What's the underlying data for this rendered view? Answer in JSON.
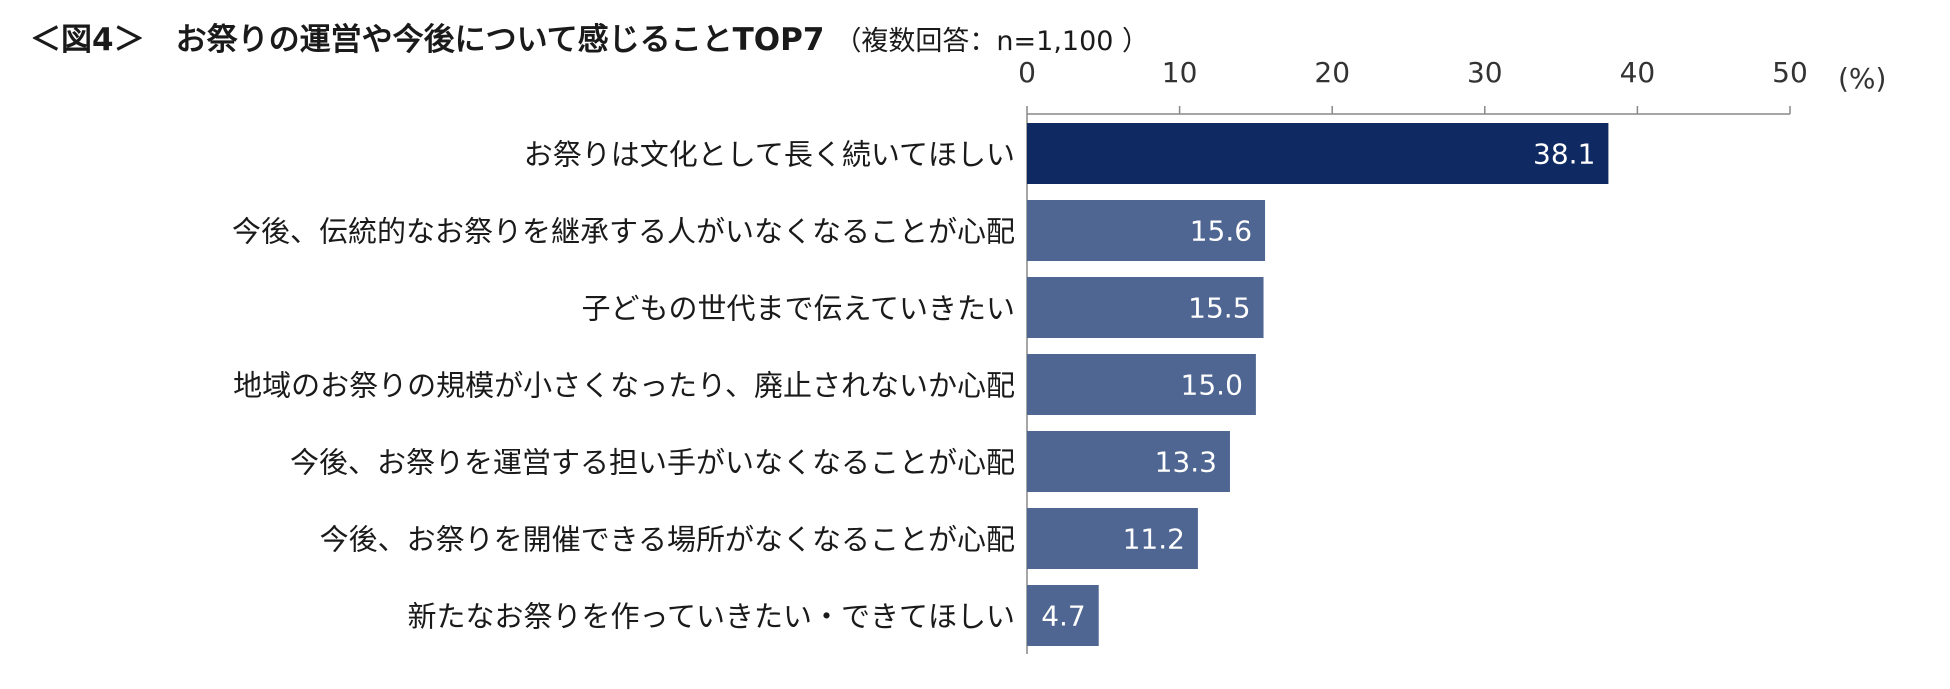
{
  "chart_data": {
    "type": "bar",
    "orientation": "horizontal",
    "title": "＜図4＞　お祭りの運営や今後について感じることTOP7",
    "subtitle": "（複数回答：n=1,100 ）",
    "unit": "(%)",
    "xlim": [
      0,
      50
    ],
    "ticks": [
      0,
      10,
      20,
      30,
      40,
      50
    ],
    "tick_labels": [
      "0",
      "10",
      "20",
      "30",
      "40",
      "50"
    ],
    "categories": [
      "お祭りは文化として長く続いてほしい",
      "今後、伝統的なお祭りを継承する人がいなくなることが心配",
      "子どもの世代まで伝えていきたい",
      "地域のお祭りの規模が小さくなったり、廃止されないか心配",
      "今後、お祭りを運営する担い手がいなくなることが心配",
      "今後、お祭りを開催できる場所がなくなることが心配",
      "新たなお祭りを作っていきたい・できてほしい"
    ],
    "values": [
      38.1,
      15.6,
      15.5,
      15.0,
      13.3,
      11.2,
      4.7
    ],
    "value_labels": [
      "38.1",
      "15.6",
      "15.5",
      "15.0",
      "13.3",
      "11.2",
      "4.7"
    ],
    "colors": {
      "highlight": "#0f2a63",
      "bar": "#4f6692",
      "axis": "#888888",
      "text": "#1a1a1a"
    },
    "grid": false,
    "legend": "none"
  }
}
